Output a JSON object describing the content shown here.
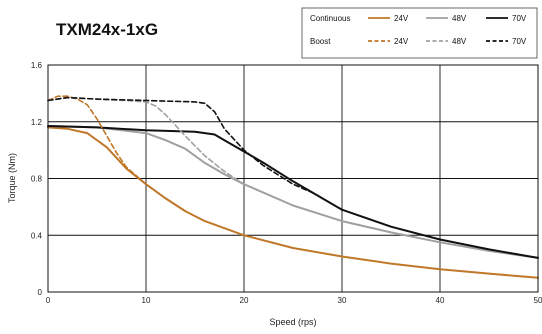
{
  "chart_data": {
    "type": "line",
    "title": "TXM24x-1xG",
    "xlabel": "Speed (rps)",
    "ylabel": "Torque (Nm)",
    "xlim": [
      0,
      50
    ],
    "ylim": [
      0,
      1.6
    ],
    "x_ticks": [
      "0",
      "10",
      "20",
      "30",
      "40",
      "50"
    ],
    "y_ticks": [
      "0",
      "0.4",
      "0.8",
      "1.2",
      "1.6"
    ],
    "grid": true,
    "legend": {
      "placement": "top-right",
      "rows": [
        {
          "label": "Continuous",
          "style": "solid"
        },
        {
          "label": "Boost",
          "style": "dashed"
        }
      ]
    },
    "series": [
      {
        "name": "24V",
        "group": "Continuous",
        "style": "solid",
        "color": "#c07828",
        "x": [
          0,
          2,
          4,
          6,
          8,
          10,
          12,
          14,
          16,
          18,
          20,
          25,
          30,
          35,
          40,
          45,
          50
        ],
        "y": [
          1.16,
          1.15,
          1.12,
          1.02,
          0.87,
          0.76,
          0.66,
          0.57,
          0.5,
          0.45,
          0.4,
          0.31,
          0.25,
          0.2,
          0.16,
          0.13,
          0.1
        ]
      },
      {
        "name": "48V",
        "group": "Continuous",
        "style": "solid",
        "color": "#a0a0a0",
        "x": [
          0,
          5,
          10,
          12,
          14,
          16,
          18,
          20,
          22,
          25,
          30,
          35,
          40,
          45,
          50
        ],
        "y": [
          1.17,
          1.16,
          1.12,
          1.07,
          1.01,
          0.91,
          0.83,
          0.76,
          0.7,
          0.61,
          0.5,
          0.42,
          0.35,
          0.29,
          0.24
        ]
      },
      {
        "name": "70V",
        "group": "Continuous",
        "style": "solid",
        "color": "#111111",
        "x": [
          0,
          5,
          10,
          15,
          17,
          18,
          20,
          22,
          25,
          30,
          35,
          40,
          45,
          50
        ],
        "y": [
          1.17,
          1.16,
          1.14,
          1.13,
          1.11,
          1.07,
          0.99,
          0.91,
          0.78,
          0.58,
          0.46,
          0.37,
          0.3,
          0.24
        ]
      },
      {
        "name": "24V",
        "group": "Boost",
        "style": "dashed",
        "color": "#c07828",
        "x": [
          0,
          1,
          2,
          3,
          4,
          5,
          6,
          7,
          8,
          10,
          12,
          14
        ],
        "y": [
          1.35,
          1.38,
          1.38,
          1.36,
          1.32,
          1.22,
          1.1,
          0.98,
          0.88,
          0.76,
          0.66,
          0.57
        ]
      },
      {
        "name": "48V",
        "group": "Boost",
        "style": "dashed",
        "color": "#a0a0a0",
        "x": [
          0,
          2,
          5,
          8,
          10,
          11,
          12,
          14,
          16,
          18,
          20,
          22
        ],
        "y": [
          1.35,
          1.37,
          1.36,
          1.35,
          1.34,
          1.31,
          1.25,
          1.1,
          0.96,
          0.85,
          0.76,
          0.7
        ]
      },
      {
        "name": "70V",
        "group": "Boost",
        "style": "dashed",
        "color": "#111111",
        "x": [
          0,
          2,
          5,
          10,
          15,
          16,
          17,
          18,
          20,
          22,
          25,
          27
        ],
        "y": [
          1.35,
          1.37,
          1.36,
          1.35,
          1.34,
          1.33,
          1.27,
          1.15,
          1.0,
          0.89,
          0.76,
          0.7
        ]
      }
    ]
  }
}
